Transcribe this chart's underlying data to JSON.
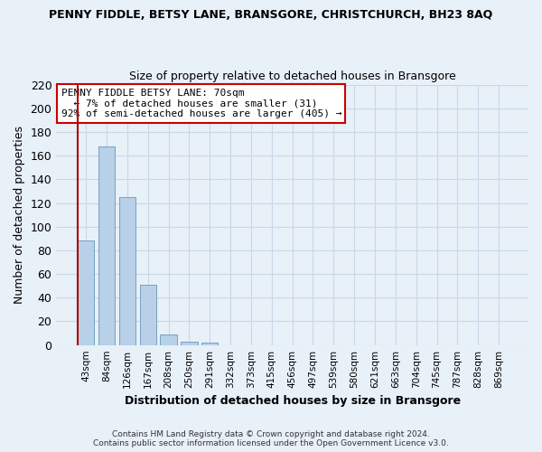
{
  "title": "PENNY FIDDLE, BETSY LANE, BRANSGORE, CHRISTCHURCH, BH23 8AQ",
  "subtitle": "Size of property relative to detached houses in Bransgore",
  "xlabel": "Distribution of detached houses by size in Bransgore",
  "ylabel": "Number of detached properties",
  "bar_labels": [
    "43sqm",
    "84sqm",
    "126sqm",
    "167sqm",
    "208sqm",
    "250sqm",
    "291sqm",
    "332sqm",
    "373sqm",
    "415sqm",
    "456sqm",
    "497sqm",
    "539sqm",
    "580sqm",
    "621sqm",
    "663sqm",
    "704sqm",
    "745sqm",
    "787sqm",
    "828sqm",
    "869sqm"
  ],
  "bar_values": [
    88,
    168,
    125,
    51,
    9,
    3,
    2,
    0,
    0,
    0,
    0,
    0,
    0,
    0,
    0,
    0,
    0,
    0,
    0,
    0,
    0
  ],
  "bar_color": "#b8d0e8",
  "highlight_color": "#aa0000",
  "ylim": [
    0,
    220
  ],
  "yticks": [
    0,
    20,
    40,
    60,
    80,
    100,
    120,
    140,
    160,
    180,
    200,
    220
  ],
  "annotation_title": "PENNY FIDDLE BETSY LANE: 70sqm",
  "annotation_line1": "← 7% of detached houses are smaller (31)",
  "annotation_line2": "92% of semi-detached houses are larger (405) →",
  "annotation_box_color": "#ffffff",
  "annotation_box_edge": "#cc0000",
  "grid_color": "#c8d8e8",
  "bg_color": "#e8f0f8",
  "footer1": "Contains HM Land Registry data © Crown copyright and database right 2024.",
  "footer2": "Contains public sector information licensed under the Open Government Licence v3.0."
}
